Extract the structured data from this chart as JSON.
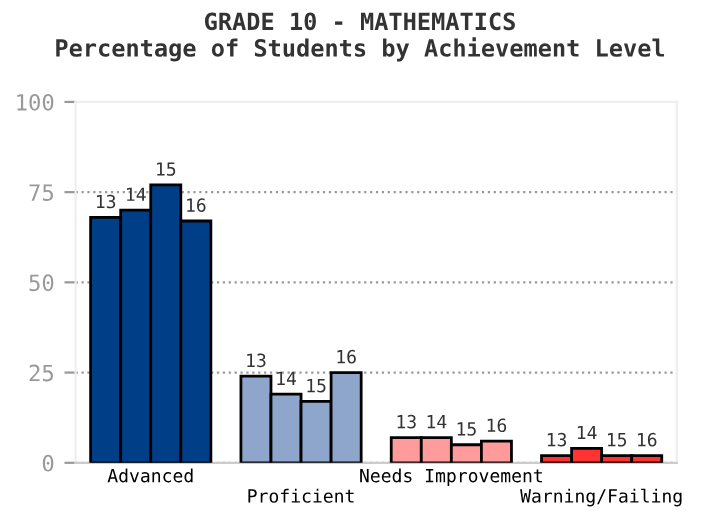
{
  "chart_data": {
    "type": "bar",
    "title": "GRADE 10 - MATHEMATICS",
    "subtitle": "Percentage of Students by Achievement Level",
    "categories": [
      "Advanced",
      "Proficient",
      "Needs Improvement",
      "Warning/Failing"
    ],
    "series": [
      {
        "name": "13",
        "colors": [
          "#003f87",
          "#8ea6cc",
          "#ff9b9b",
          "#ff3333"
        ],
        "values": [
          68,
          24,
          7,
          2
        ]
      },
      {
        "name": "14",
        "colors": [
          "#003f87",
          "#8ea6cc",
          "#ff9b9b",
          "#ff3333"
        ],
        "values": [
          70,
          19,
          7,
          4
        ]
      },
      {
        "name": "15",
        "colors": [
          "#003f87",
          "#8ea6cc",
          "#ff9b9b",
          "#ff3333"
        ],
        "values": [
          77,
          17,
          5,
          2
        ]
      },
      {
        "name": "16",
        "colors": [
          "#003f87",
          "#8ea6cc",
          "#ff9b9b",
          "#ff3333"
        ],
        "values": [
          67,
          25,
          6,
          2
        ]
      }
    ],
    "ylim": [
      0,
      100
    ],
    "yticks": [
      0,
      25,
      50,
      75,
      100
    ],
    "grid": "y",
    "legend": false
  }
}
